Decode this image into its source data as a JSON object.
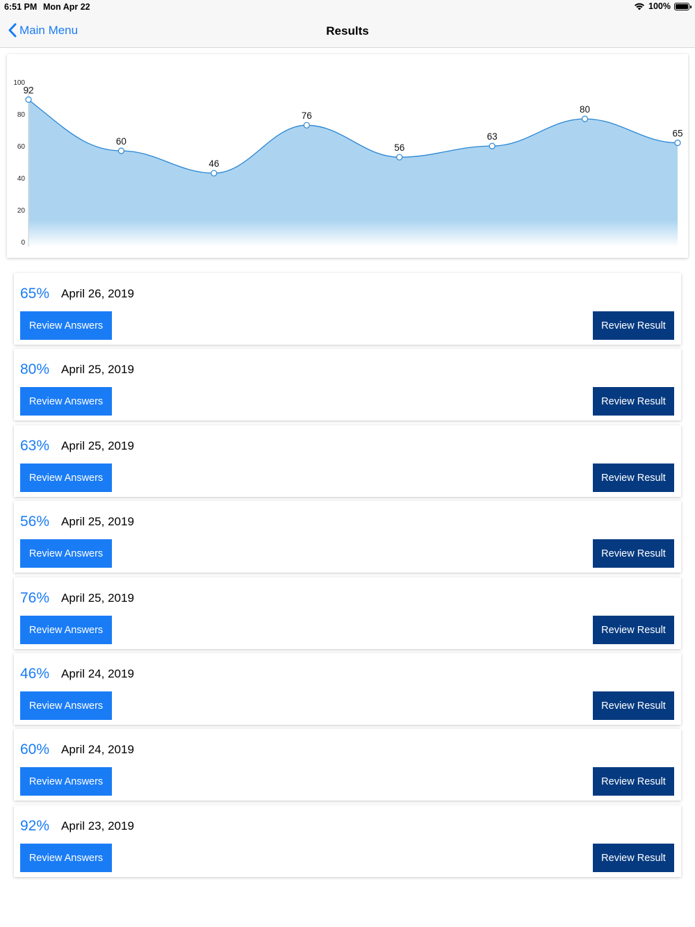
{
  "status_bar": {
    "time": "6:51 PM",
    "date": "Mon Apr 22",
    "battery": "100%",
    "wifi_icon": "wifi-icon",
    "battery_icon": "battery-icon"
  },
  "nav": {
    "back_label": "Main Menu",
    "title": "Results"
  },
  "colors": {
    "accent": "#1a7cf5",
    "dark_button": "#063a80",
    "chart_fill": "#acd4f0",
    "chart_line": "#2a86d4"
  },
  "chart_data": {
    "type": "area",
    "x": [
      1,
      2,
      3,
      4,
      5,
      6,
      7,
      8
    ],
    "values": [
      92,
      60,
      46,
      76,
      56,
      63,
      80,
      65
    ],
    "data_labels": [
      "92",
      "60",
      "46",
      "76",
      "56",
      "63",
      "80",
      "65"
    ],
    "y_ticks": [
      "0",
      "20",
      "40",
      "60",
      "80",
      "100"
    ],
    "ylim": [
      0,
      100
    ],
    "grid": false,
    "legend": "none"
  },
  "results": [
    {
      "percent": "65%",
      "date": "April 26, 2019",
      "answers_label": "Review Answers",
      "result_label": "Review Result"
    },
    {
      "percent": "80%",
      "date": "April 25, 2019",
      "answers_label": "Review Answers",
      "result_label": "Review Result"
    },
    {
      "percent": "63%",
      "date": "April 25, 2019",
      "answers_label": "Review Answers",
      "result_label": "Review Result"
    },
    {
      "percent": "56%",
      "date": "April 25, 2019",
      "answers_label": "Review Answers",
      "result_label": "Review Result"
    },
    {
      "percent": "76%",
      "date": "April 25, 2019",
      "answers_label": "Review Answers",
      "result_label": "Review Result"
    },
    {
      "percent": "46%",
      "date": "April 24, 2019",
      "answers_label": "Review Answers",
      "result_label": "Review Result"
    },
    {
      "percent": "60%",
      "date": "April 24, 2019",
      "answers_label": "Review Answers",
      "result_label": "Review Result"
    },
    {
      "percent": "92%",
      "date": "April 23, 2019",
      "answers_label": "Review Answers",
      "result_label": "Review Result"
    }
  ]
}
